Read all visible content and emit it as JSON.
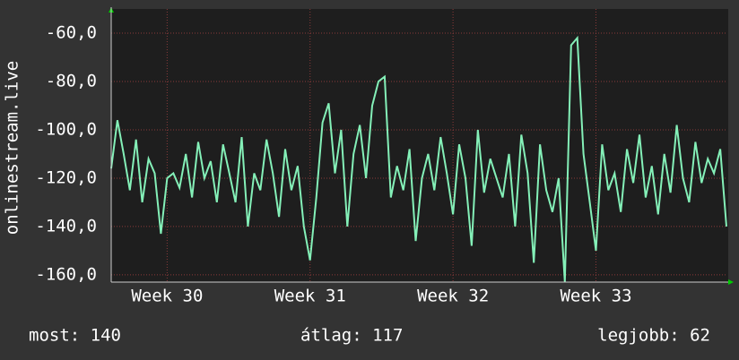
{
  "chart_data": {
    "type": "line",
    "y_label": "onlinestream.live",
    "categories": [
      null,
      null,
      null,
      null,
      null,
      null,
      null,
      null,
      null,
      "Week 30",
      null,
      null,
      null,
      null,
      null,
      null,
      null,
      null,
      null,
      null,
      null,
      null,
      null,
      null,
      null,
      null,
      null,
      null,
      null,
      null,
      null,
      null,
      "Week 31",
      null,
      null,
      null,
      null,
      null,
      null,
      null,
      null,
      null,
      null,
      null,
      null,
      null,
      null,
      null,
      null,
      null,
      null,
      null,
      null,
      null,
      null,
      "Week 32",
      null,
      null,
      null,
      null,
      null,
      null,
      null,
      null,
      null,
      null,
      null,
      null,
      null,
      null,
      null,
      null,
      null,
      null,
      null,
      null,
      null,
      null,
      "Week 33",
      null,
      null,
      null,
      null,
      null,
      null,
      null,
      null,
      null,
      null,
      null,
      null,
      null,
      null,
      null,
      null,
      null,
      null,
      null,
      null,
      null
    ],
    "series": [
      {
        "name": "onlinestream.live",
        "color": "#84f0b8",
        "values": [
          -116,
          -96,
          -110,
          -125,
          -104,
          -130,
          -112,
          -118,
          -143,
          -120,
          -118,
          -124,
          -110,
          -128,
          -105,
          -120,
          -113,
          -130,
          -106,
          -118,
          -130,
          -103,
          -140,
          -118,
          -125,
          -104,
          -118,
          -136,
          -108,
          -125,
          -115,
          -140,
          -154,
          -128,
          -97,
          -89,
          -118,
          -100,
          -140,
          -110,
          -98,
          -120,
          -90,
          -80,
          -78,
          -128,
          -115,
          -125,
          -108,
          -146,
          -120,
          -110,
          -125,
          -103,
          -118,
          -135,
          -106,
          -120,
          -148,
          -100,
          -126,
          -112,
          -120,
          -128,
          -110,
          -140,
          -102,
          -118,
          -155,
          -106,
          -125,
          -134,
          -120,
          -163,
          -65,
          -62,
          -110,
          -130,
          -150,
          -106,
          -125,
          -118,
          -134,
          -108,
          -122,
          -102,
          -128,
          -115,
          -135,
          -110,
          -126,
          -98,
          -120,
          -130,
          -105,
          -122,
          -112,
          -118,
          -108,
          -140
        ]
      }
    ],
    "ylim": [
      -163,
      -50
    ],
    "yticks": [
      {
        "value": -160,
        "label": "-160,0"
      },
      {
        "value": -140,
        "label": "-140,0"
      },
      {
        "value": -120,
        "label": "-120,0"
      },
      {
        "value": -100,
        "label": "-100,0"
      },
      {
        "value": -80,
        "label": "-80,0"
      },
      {
        "value": -60,
        "label": "-60,0"
      }
    ],
    "grid": true
  },
  "footer": {
    "current": "most: 140",
    "average": "átlag: 117",
    "best": "legjobb: 62"
  }
}
